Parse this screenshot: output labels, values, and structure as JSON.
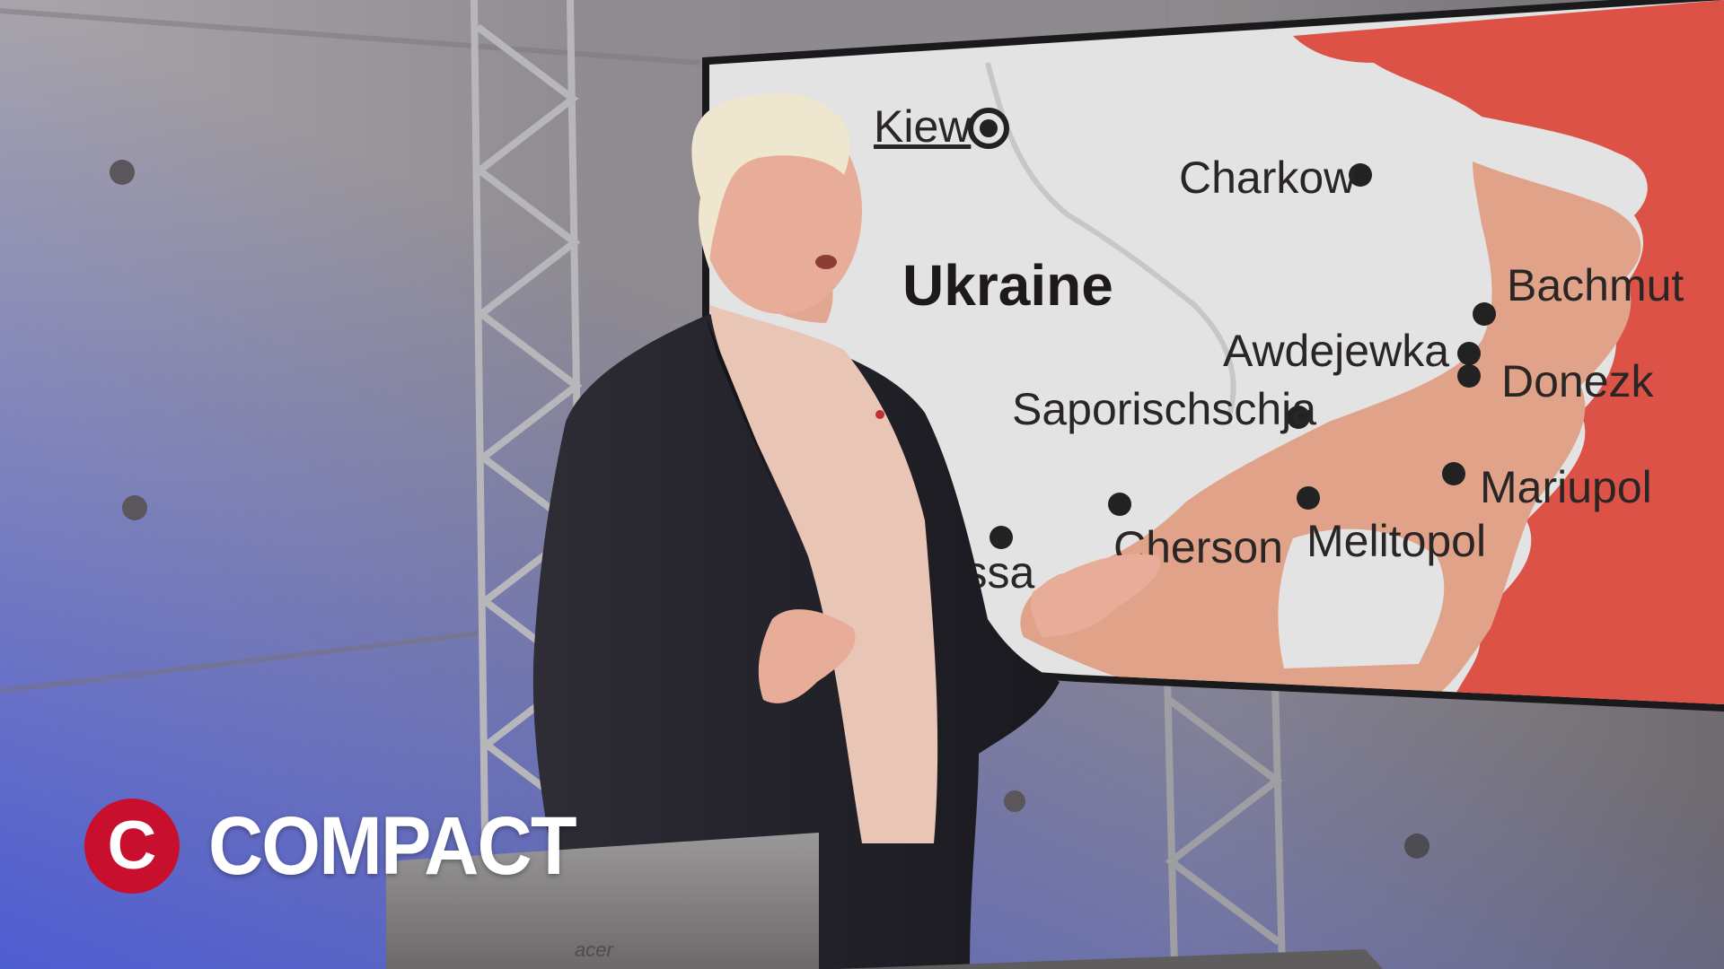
{
  "map": {
    "country_label": "Ukraine",
    "cities": {
      "kiew": "Kiew",
      "charkow": "Charkow",
      "bachmut": "Bachmut",
      "awdejewka": "Awdejewka",
      "donezk": "Donezk",
      "saporischschja": "Saporischschja",
      "mariupol": "Mariupol",
      "melitopol": "Melitopol",
      "cherson": "Cherson",
      "odessa": "Odessa"
    }
  },
  "branding": {
    "logo_text": "COMPACT",
    "logo_letter": "C",
    "laptop_brand": "acer"
  },
  "colors": {
    "russia_red": "#dd5246",
    "occupied_salmon": "#e0a288",
    "map_white": "#e3e3e3",
    "logo_red": "#c8102e"
  }
}
